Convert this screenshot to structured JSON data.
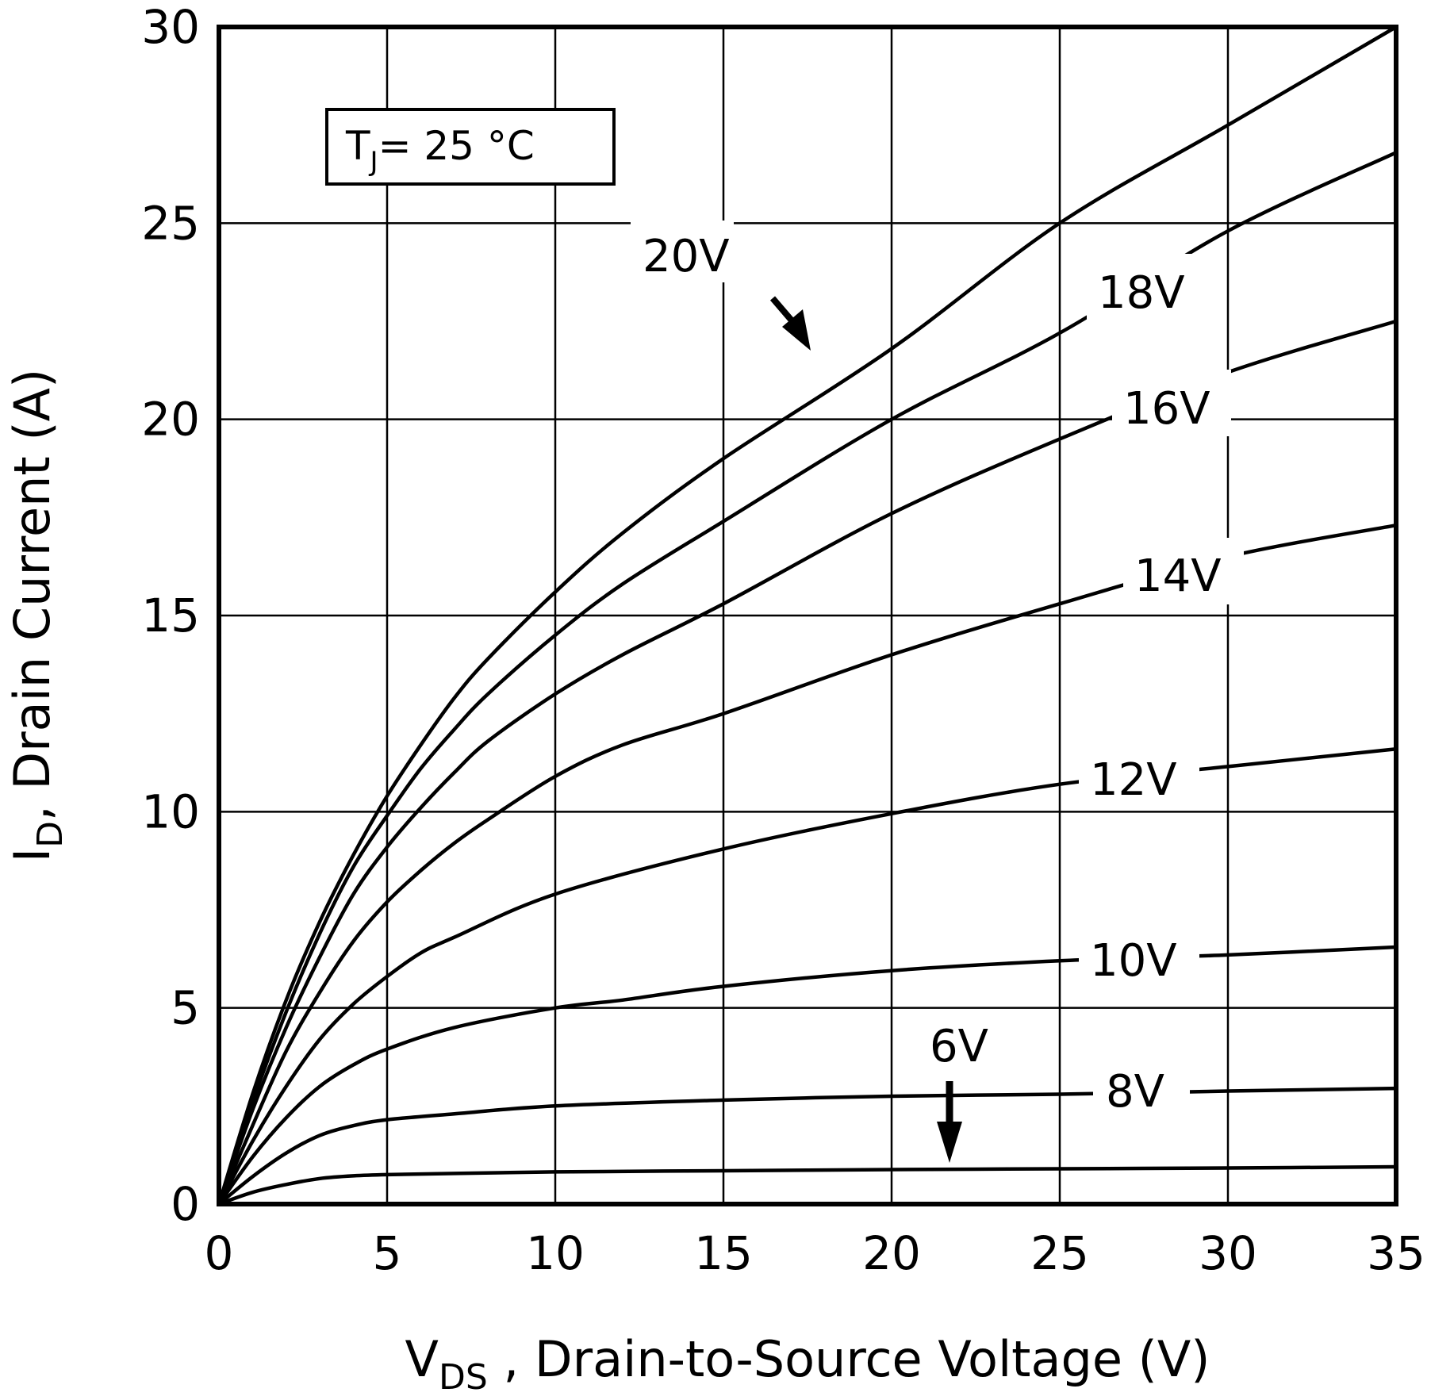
{
  "chart_data": {
    "type": "line",
    "xlabel": {
      "main": "V",
      "sub": "DS",
      "rest": " , Drain-to-Source Voltage (V)"
    },
    "ylabel": {
      "main": "I",
      "sub": "D",
      "rest": ", Drain Current (A)"
    },
    "xlim": [
      0,
      35
    ],
    "ylim": [
      0,
      30
    ],
    "xticks": [
      "0",
      "5",
      "10",
      "15",
      "20",
      "25",
      "30",
      "35"
    ],
    "yticks": [
      "0",
      "5",
      "10",
      "15",
      "20",
      "25",
      "30"
    ],
    "grid": true,
    "annotation": {
      "main": "T",
      "sub": "J",
      "rest": "= 25 °C"
    },
    "series": [
      {
        "name": "6V",
        "x": [
          0,
          1,
          2,
          3,
          4,
          5,
          7,
          10,
          15,
          20,
          25,
          30,
          35
        ],
        "y": [
          0,
          0.3,
          0.5,
          0.65,
          0.72,
          0.75,
          0.78,
          0.82,
          0.85,
          0.88,
          0.9,
          0.92,
          0.95
        ]
      },
      {
        "name": "8V",
        "x": [
          0,
          1,
          2,
          3,
          4,
          5,
          7,
          10,
          15,
          20,
          25,
          30,
          35
        ],
        "y": [
          0,
          0.7,
          1.3,
          1.75,
          2.0,
          2.15,
          2.3,
          2.5,
          2.65,
          2.75,
          2.8,
          2.88,
          2.95
        ]
      },
      {
        "name": "10V",
        "x": [
          0,
          1,
          2,
          3,
          4,
          5,
          7,
          10,
          12,
          15,
          20,
          25,
          30,
          35
        ],
        "y": [
          0,
          1.2,
          2.2,
          3.0,
          3.55,
          3.95,
          4.5,
          5.0,
          5.2,
          5.55,
          5.95,
          6.2,
          6.35,
          6.55
        ]
      },
      {
        "name": "12V",
        "x": [
          0,
          1,
          2,
          3,
          4,
          5,
          6,
          7,
          10,
          15,
          20,
          25,
          30,
          35
        ],
        "y": [
          0,
          1.6,
          3.0,
          4.2,
          5.1,
          5.8,
          6.4,
          6.8,
          7.9,
          9.05,
          9.95,
          10.7,
          11.15,
          11.6
        ]
      },
      {
        "name": "14V",
        "x": [
          0,
          1,
          2,
          3,
          4,
          5,
          6,
          7,
          8,
          10,
          12,
          15,
          20,
          25,
          30,
          35
        ],
        "y": [
          0,
          2.0,
          3.9,
          5.4,
          6.7,
          7.7,
          8.5,
          9.2,
          9.8,
          10.9,
          11.7,
          12.5,
          14.0,
          15.3,
          16.5,
          17.3
        ]
      },
      {
        "name": "16V",
        "x": [
          0,
          1,
          2,
          3,
          4,
          5,
          6,
          7,
          8,
          10,
          12,
          15,
          20,
          25,
          30,
          35
        ],
        "y": [
          0,
          2.4,
          4.5,
          6.3,
          7.9,
          9.1,
          10.1,
          11.0,
          11.8,
          13.0,
          14.0,
          15.3,
          17.6,
          19.5,
          21.2,
          22.5
        ]
      },
      {
        "name": "18V",
        "x": [
          0,
          1,
          2,
          3,
          4,
          5,
          6,
          7,
          8,
          10,
          12,
          15,
          20,
          25,
          30,
          35
        ],
        "y": [
          0,
          2.6,
          4.9,
          6.9,
          8.6,
          9.9,
          11.1,
          12.1,
          13.0,
          14.5,
          15.8,
          17.4,
          20.0,
          22.2,
          24.8,
          26.8
        ]
      },
      {
        "name": "20V",
        "x": [
          0,
          1,
          2,
          3,
          4,
          5,
          6,
          7,
          8,
          10,
          12,
          15,
          20,
          25,
          30,
          35
        ],
        "y": [
          0,
          2.8,
          5.2,
          7.2,
          8.9,
          10.4,
          11.7,
          12.9,
          13.9,
          15.6,
          17.1,
          19.0,
          21.8,
          25.0,
          27.5,
          30.0
        ]
      }
    ],
    "curve_labels": [
      {
        "text": "20V",
        "arrow": true
      },
      {
        "text": "18V"
      },
      {
        "text": "16V"
      },
      {
        "text": "14V"
      },
      {
        "text": "12V"
      },
      {
        "text": "10V"
      },
      {
        "text": "8V"
      },
      {
        "text": "6V",
        "arrow": true
      }
    ]
  }
}
